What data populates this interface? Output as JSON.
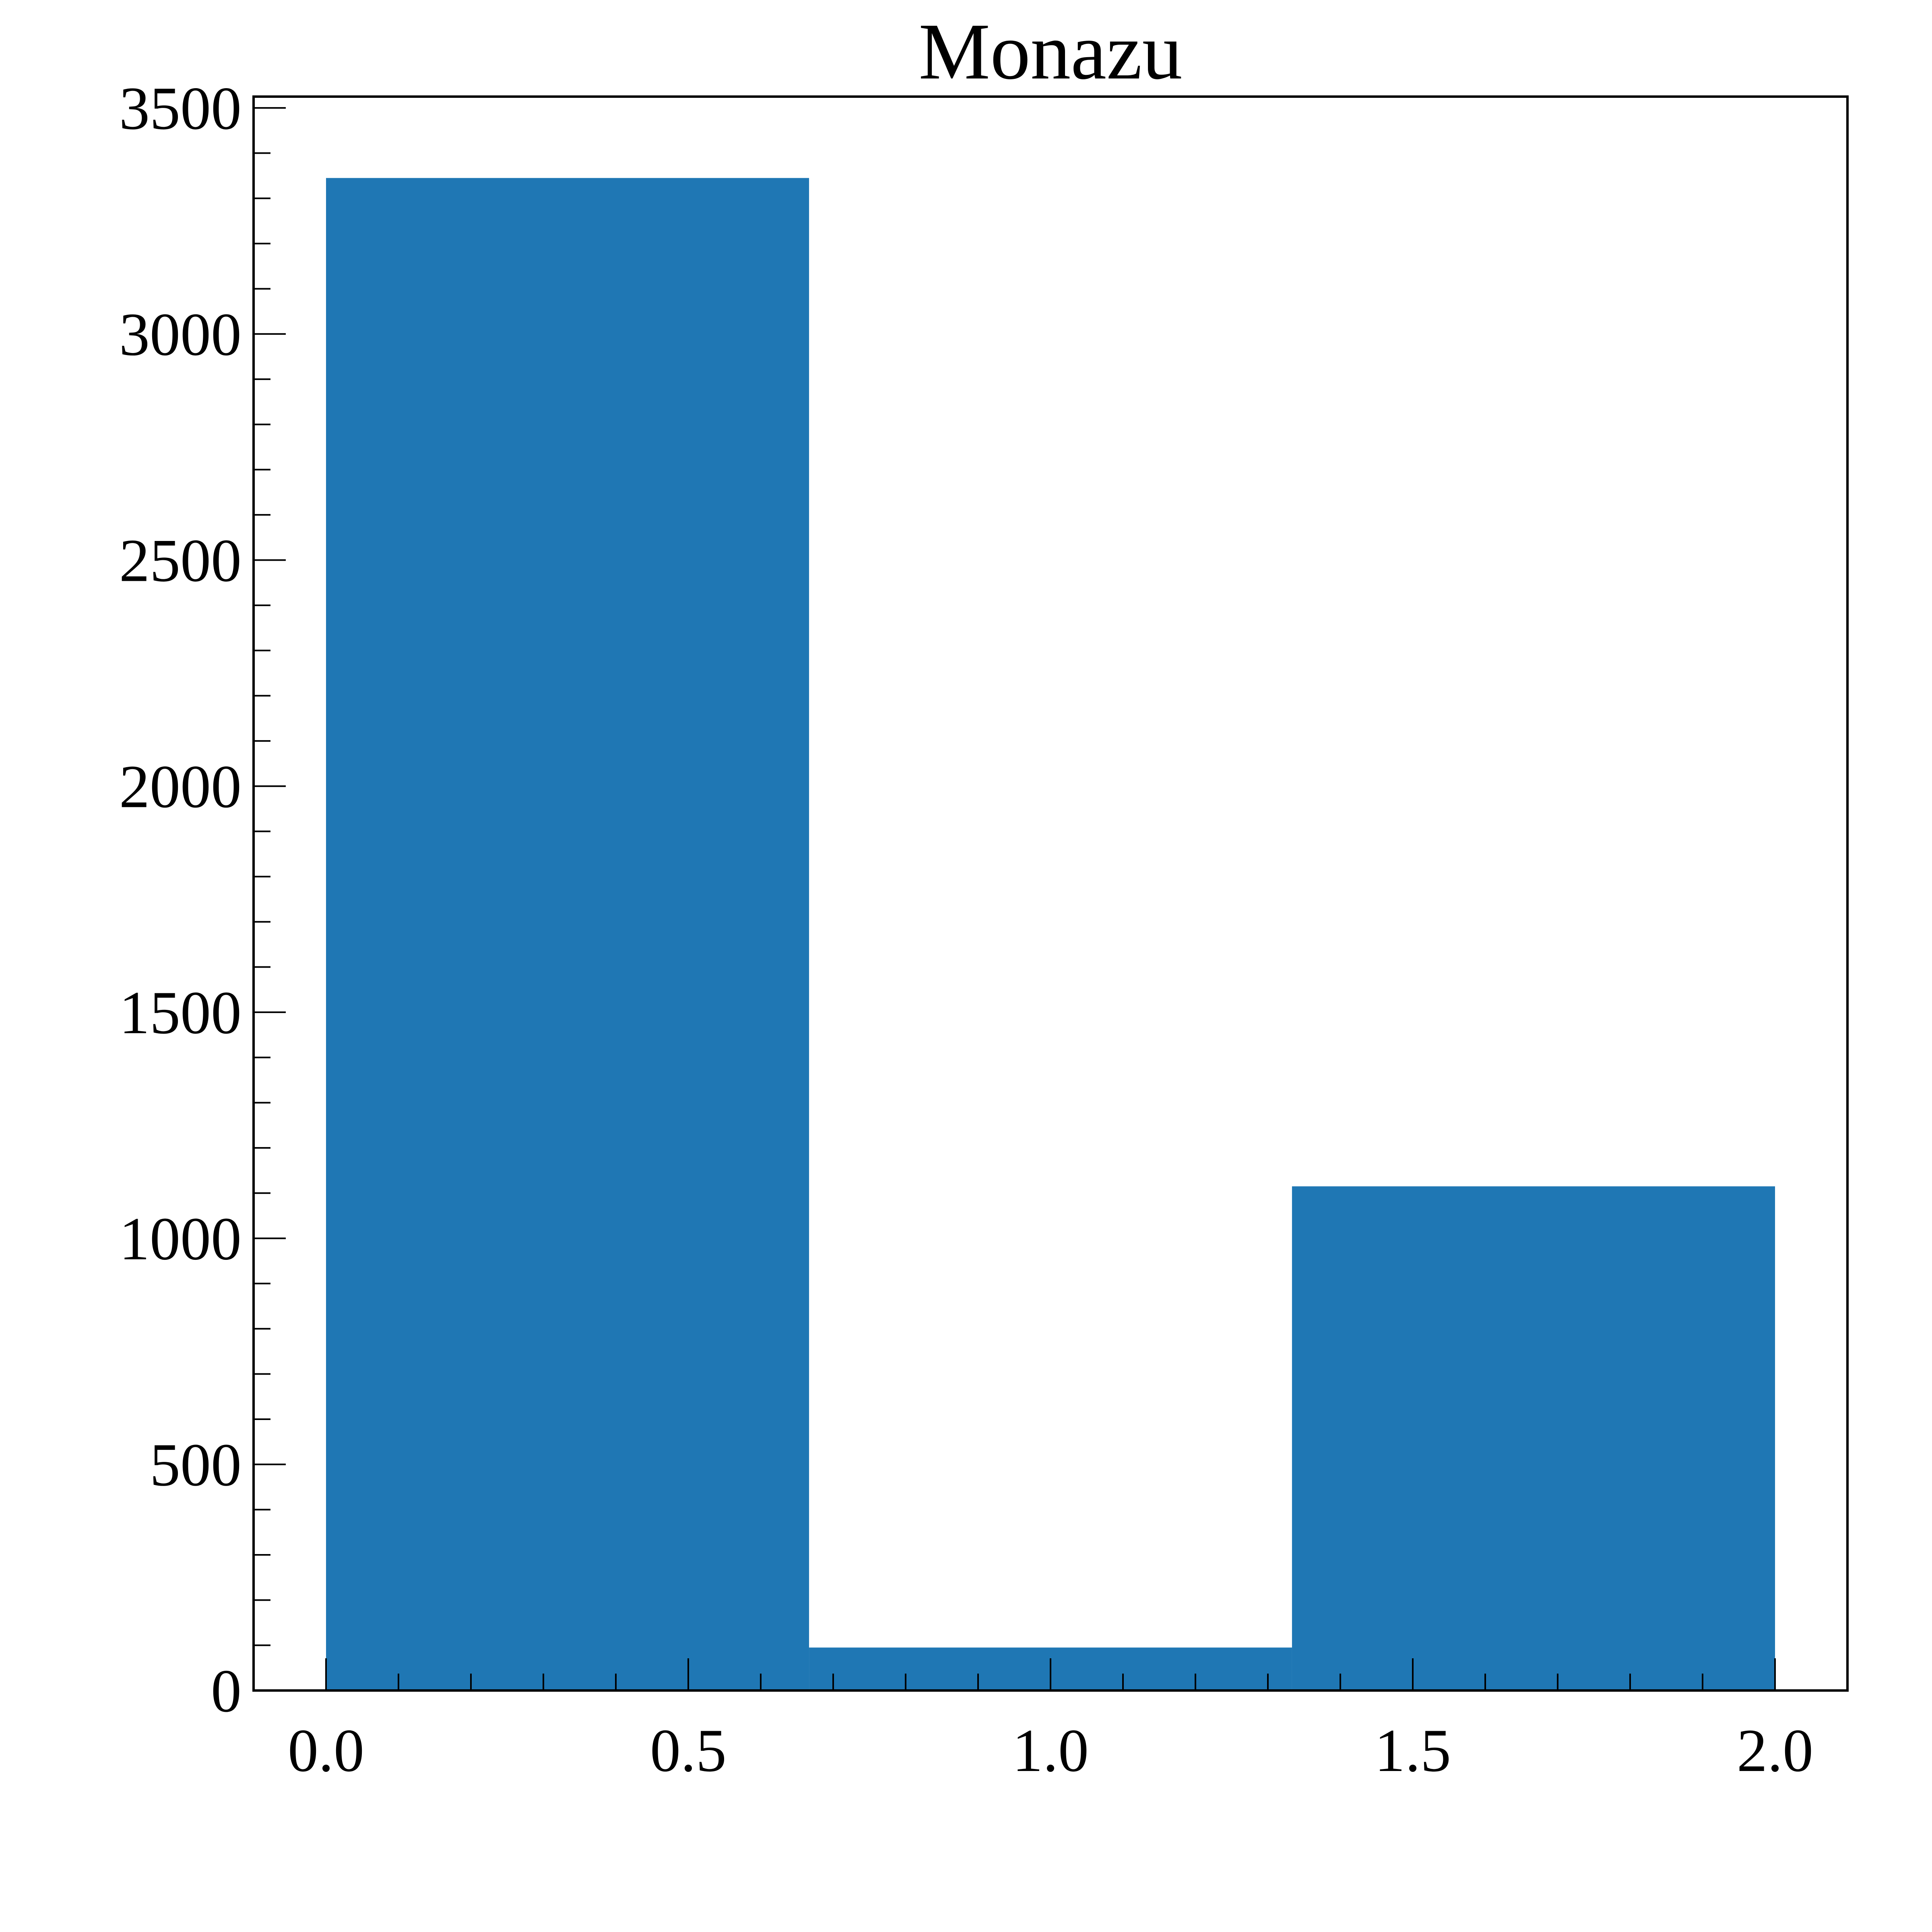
{
  "chart_data": {
    "type": "bar",
    "title": "Monazu",
    "xlabel": "",
    "ylabel": "",
    "bins": [
      {
        "x0": 0.0,
        "x1": 0.6667,
        "value": 3345
      },
      {
        "x0": 0.6667,
        "x1": 1.3333,
        "value": 95
      },
      {
        "x0": 1.3333,
        "x1": 2.0,
        "value": 1115
      }
    ],
    "xlim": [
      -0.1,
      2.1
    ],
    "ylim": [
      0,
      3525
    ],
    "xticks": [
      0.0,
      0.5,
      1.0,
      1.5,
      2.0
    ],
    "xtick_labels": [
      "0.0",
      "0.5",
      "1.0",
      "1.5",
      "2.0"
    ],
    "yticks": [
      0,
      500,
      1000,
      1500,
      2000,
      2500,
      3000,
      3500
    ],
    "ytick_labels": [
      "0",
      "500",
      "1000",
      "1500",
      "2000",
      "2500",
      "3000",
      "3500"
    ],
    "x_minor_step": 0.1,
    "y_minor_step": 100,
    "bar_color": "#1f77b4",
    "grid": false,
    "legend": false
  }
}
